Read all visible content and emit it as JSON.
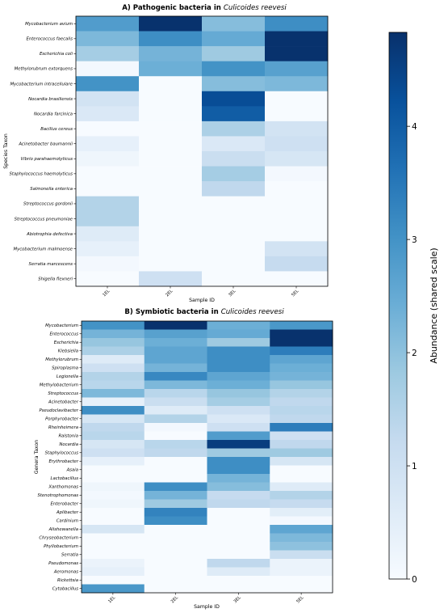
{
  "colorbar": {
    "label": "Abundance (shared scale)",
    "ticks": [
      0,
      1,
      2,
      3,
      4
    ],
    "vmin": 0,
    "vmax": 4.83
  },
  "chart_data": [
    {
      "type": "heatmap",
      "title_prefix": "A) Pathogenic bacteria in ",
      "title_species": "Culicoides reevesi",
      "xlabel": "Sample ID",
      "ylabel": "Species Taxon",
      "x": [
        "1EL",
        "2EL",
        "3EL",
        "5EL"
      ],
      "y": [
        "Mycobacterium avium",
        "Enterococcus faecalis",
        "Escherichia coli",
        "Methylorubrum extorquens",
        "Mycobacterium intracellulare",
        "Nocardia brasiliensis",
        "Nocardia farcinica",
        "Bacillus cereus",
        "Acinetobacter baumannii",
        "Vibrio parahaemolyticus",
        "Staphylococcus haemolyticus",
        "Salmonella enterica",
        "Streptococcus gordonii",
        "Streptococcus pneumoniae",
        "Abiotrophia defectiva",
        "Mycobacterium malmoense",
        "Serratia marcescens",
        "Shigella flexneri"
      ],
      "values": [
        [
          2.8,
          4.8,
          2.1,
          3.1
        ],
        [
          2.2,
          3.1,
          2.5,
          4.8
        ],
        [
          1.7,
          2.3,
          1.8,
          4.8
        ],
        [
          0.1,
          2.4,
          3.0,
          2.7
        ],
        [
          3.0,
          0.0,
          2.1,
          2.2
        ],
        [
          0.9,
          0.0,
          4.3,
          0.0
        ],
        [
          0.7,
          0.0,
          4.0,
          0.0
        ],
        [
          0.0,
          0.0,
          1.6,
          0.9
        ],
        [
          0.4,
          0.0,
          0.7,
          1.0
        ],
        [
          0.2,
          0.0,
          1.1,
          0.8
        ],
        [
          0.0,
          0.0,
          1.7,
          0.1
        ],
        [
          0.0,
          0.0,
          1.3,
          0.0
        ],
        [
          1.5,
          0.0,
          0.0,
          0.0
        ],
        [
          1.5,
          0.0,
          0.0,
          0.0
        ],
        [
          0.6,
          0.0,
          0.0,
          0.0
        ],
        [
          0.4,
          0.0,
          0.0,
          0.9
        ],
        [
          0.1,
          0.0,
          0.0,
          1.2
        ],
        [
          0.0,
          1.0,
          0.0,
          0.0
        ]
      ]
    },
    {
      "type": "heatmap",
      "title_prefix": "B) Symbiotic bacteria in ",
      "title_species": "Culicoides reevesi",
      "xlabel": "Sample ID",
      "ylabel": "Genera Taxon",
      "x": [
        "1EL",
        "2EL",
        "3EL",
        "5EL"
      ],
      "y": [
        "Mycobacterium",
        "Enterococcus",
        "Escherichia",
        "Klebsiella",
        "Methylorubrum",
        "Spiroplasma",
        "Legionella",
        "Methylobacterium",
        "Streptococcus",
        "Acinetobacter",
        "Pseudoclavibacter",
        "Porphyrobacter",
        "Rheinheimera",
        "Ralstonia",
        "Nocardia",
        "Staphylococcus",
        "Erythrobacter",
        "Asaia",
        "Lactobacillus",
        "Xanthomonas",
        "Stenotrophomonas",
        "Enterobacter",
        "Aplibacter",
        "Cardinium",
        "Alishewanella",
        "Chryseobacterium",
        "Phyllobacterium",
        "Serratia",
        "Pseudomonas",
        "Aeromonas",
        "Rickettsia",
        "Cytobacillus"
      ],
      "values": [
        [
          3.0,
          4.8,
          2.4,
          2.9
        ],
        [
          2.3,
          2.7,
          2.5,
          4.8
        ],
        [
          1.9,
          2.4,
          1.8,
          4.8
        ],
        [
          1.6,
          2.6,
          3.1,
          3.4
        ],
        [
          0.6,
          2.6,
          3.1,
          2.6
        ],
        [
          1.0,
          2.3,
          3.1,
          2.4
        ],
        [
          1.5,
          3.2,
          2.6,
          2.3
        ],
        [
          1.4,
          2.2,
          2.4,
          1.9
        ],
        [
          2.2,
          1.4,
          1.9,
          1.5
        ],
        [
          0.4,
          1.1,
          1.7,
          1.3
        ],
        [
          3.1,
          0.6,
          1.0,
          1.4
        ],
        [
          0.8,
          1.5,
          0.7,
          1.3
        ],
        [
          1.3,
          0.1,
          1.0,
          3.4
        ],
        [
          1.4,
          0.0,
          2.8,
          1.0
        ],
        [
          0.8,
          1.4,
          4.6,
          1.3
        ],
        [
          1.0,
          1.3,
          1.8,
          1.8
        ],
        [
          0.4,
          0.0,
          3.1,
          0.8
        ],
        [
          0.0,
          0.0,
          3.1,
          0.0
        ],
        [
          0.0,
          0.0,
          2.3,
          0.0
        ],
        [
          0.2,
          3.1,
          2.1,
          0.6
        ],
        [
          0.1,
          2.3,
          1.2,
          1.5
        ],
        [
          0.2,
          1.8,
          1.3,
          1.2
        ],
        [
          0.0,
          3.3,
          0.0,
          0.5
        ],
        [
          0.0,
          3.1,
          0.0,
          0.1
        ],
        [
          0.8,
          0.0,
          0.0,
          2.6
        ],
        [
          0.0,
          0.0,
          0.0,
          2.2
        ],
        [
          0.0,
          0.0,
          0.0,
          2.0
        ],
        [
          0.0,
          0.0,
          0.0,
          1.1
        ],
        [
          0.3,
          0.0,
          1.3,
          0.3
        ],
        [
          0.4,
          0.0,
          0.6,
          0.3
        ],
        [
          0.0,
          0.0,
          0.0,
          0.0
        ],
        [
          2.9,
          0.0,
          0.0,
          0.0
        ]
      ]
    }
  ]
}
